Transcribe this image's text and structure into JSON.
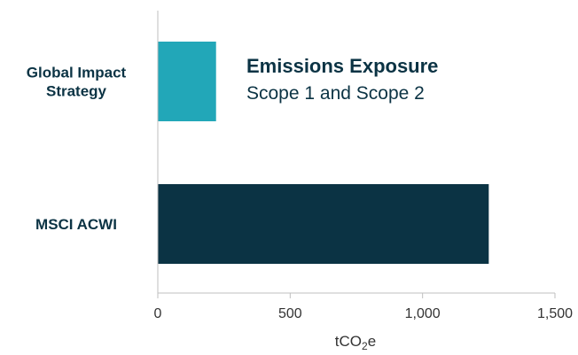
{
  "chart_data": {
    "type": "bar",
    "orientation": "horizontal",
    "title": "Emissions Exposure",
    "subtitle": "Scope 1 and Scope 2",
    "categories": [
      "Global Impact Strategy",
      "MSCI ACWI"
    ],
    "category_lines": [
      [
        "Global Impact",
        "Strategy"
      ],
      [
        "MSCI ACWI"
      ]
    ],
    "values": [
      220,
      1250
    ],
    "colors": [
      "#22a7b8",
      "#0b3344"
    ],
    "xlabel": "tCO₂e",
    "xlabel_parts": {
      "pre": "tCO",
      "sub": "2",
      "post": "e"
    },
    "xlim": [
      0,
      1500
    ],
    "ticks": [
      0,
      500,
      1000,
      1500
    ],
    "tick_labels": [
      "0",
      "500",
      "1,000",
      "1,500"
    ],
    "grid": false,
    "legend": "none"
  }
}
